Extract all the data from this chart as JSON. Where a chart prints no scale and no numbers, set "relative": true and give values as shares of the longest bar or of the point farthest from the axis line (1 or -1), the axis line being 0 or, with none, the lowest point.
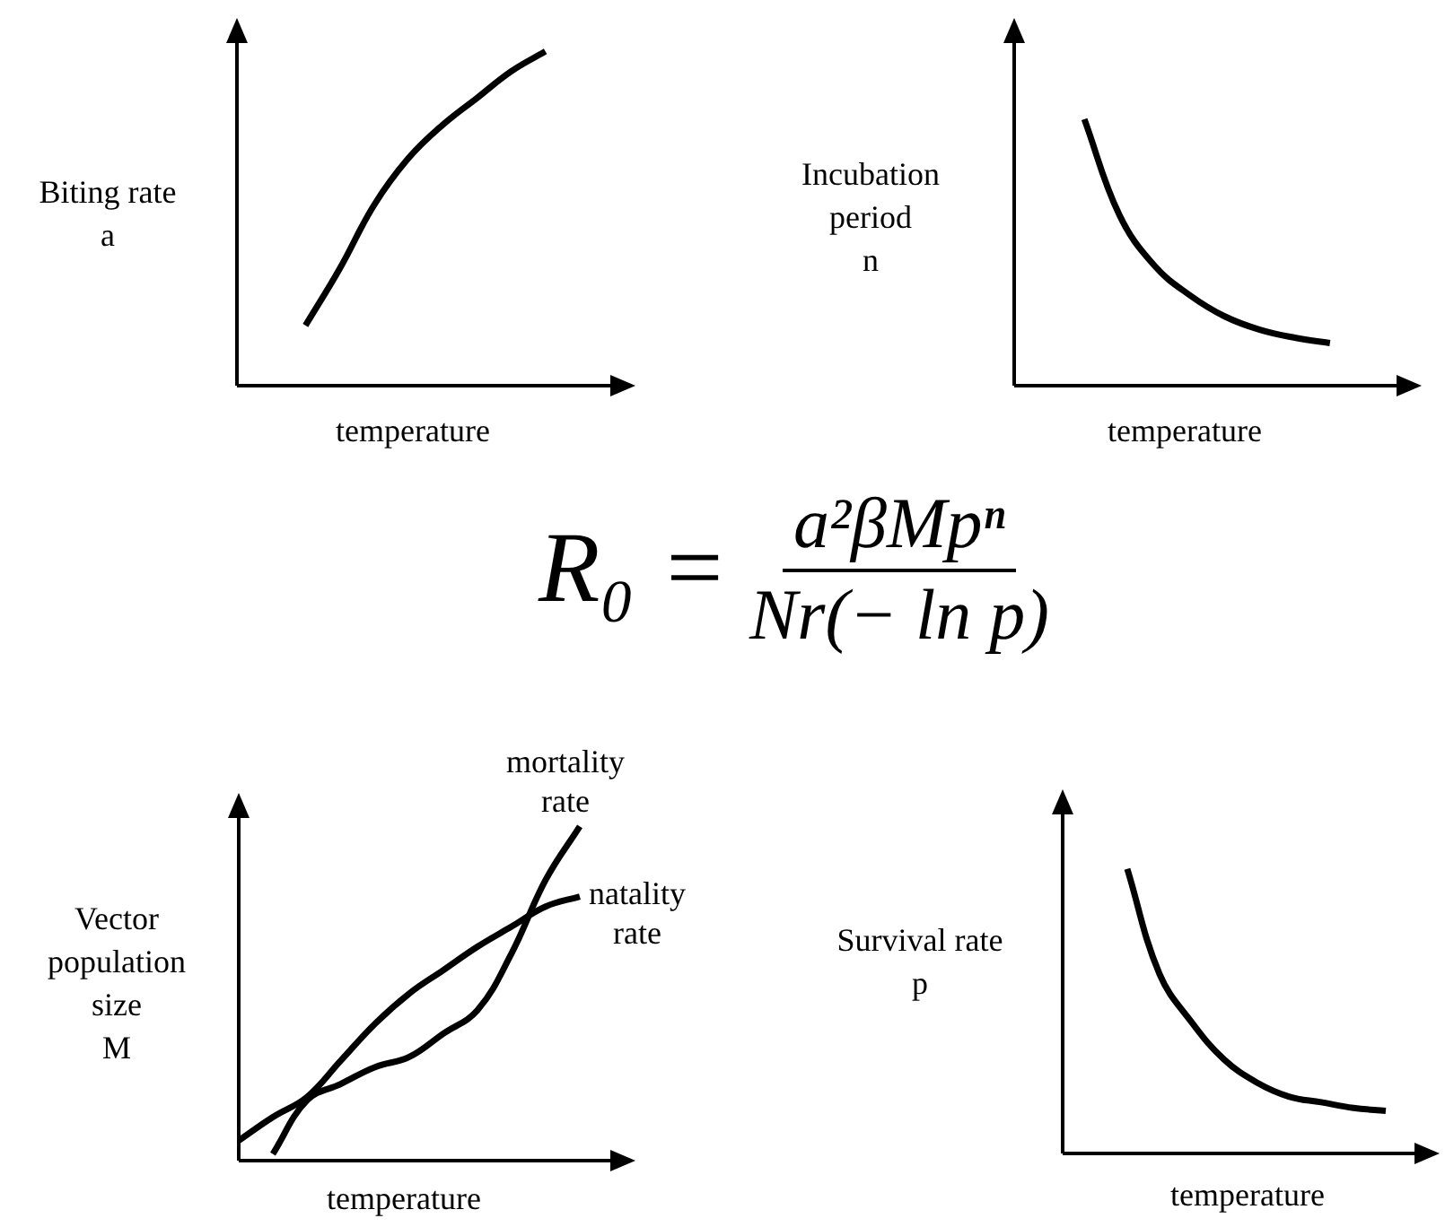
{
  "chart_data": [
    {
      "type": "line",
      "ylabel": "Biting rate a",
      "xlabel": "temperature",
      "relative": true,
      "categories": [
        null,
        null,
        null,
        null,
        null,
        null,
        null,
        null,
        null,
        null,
        null,
        null
      ],
      "series": [
        {
          "color": "#000000",
          "values": [
            null,
            null,
            0.18,
            0.35,
            0.54,
            0.68,
            0.78,
            0.86,
            0.94,
            1,
            null,
            null
          ]
        }
      ]
    },
    {
      "type": "line",
      "ylabel": "Incubation period n",
      "xlabel": "temperature",
      "relative": true,
      "categories": [
        null,
        null,
        null,
        null,
        null,
        null,
        null,
        null,
        null,
        null,
        null,
        null
      ],
      "series": [
        {
          "color": "#000000",
          "values": [
            null,
            null,
            1,
            0.64,
            0.45,
            0.34,
            0.26,
            0.21,
            0.18,
            0.16,
            null,
            null
          ]
        }
      ]
    },
    {
      "type": "other",
      "annotations": [
        "R₀ =",
        "a²βMpⁿ",
        "Nr(− ln p)"
      ]
    },
    {
      "type": "line",
      "ylabel": "Vector population size M",
      "xlabel": "temperature",
      "relative": true,
      "categories": [
        null,
        null,
        null,
        null,
        null,
        null,
        null,
        null,
        null,
        null,
        null,
        null
      ],
      "series": [
        {
          "name": "mortality rate",
          "color": "#000000",
          "values": [
            null,
            0.02,
            0.18,
            0.23,
            0.28,
            0.31,
            0.38,
            0.45,
            0.62,
            0.84,
            1,
            null
          ]
        },
        {
          "name": "natality rate",
          "color": "#000000",
          "values": [
            0.06,
            0.13,
            0.19,
            0.3,
            0.41,
            0.5,
            0.57,
            0.64,
            0.7,
            0.76,
            0.79,
            null
          ]
        }
      ]
    },
    {
      "type": "line",
      "ylabel": "Survival rate p",
      "xlabel": "temperature",
      "relative": true,
      "categories": [
        null,
        null,
        null,
        null,
        null,
        null,
        null,
        null,
        null,
        null,
        null,
        null
      ],
      "series": [
        {
          "color": "#000000",
          "values": [
            null,
            null,
            1,
            0.63,
            0.46,
            0.33,
            0.25,
            0.2,
            0.18,
            0.16,
            0.15,
            null
          ]
        }
      ]
    }
  ]
}
